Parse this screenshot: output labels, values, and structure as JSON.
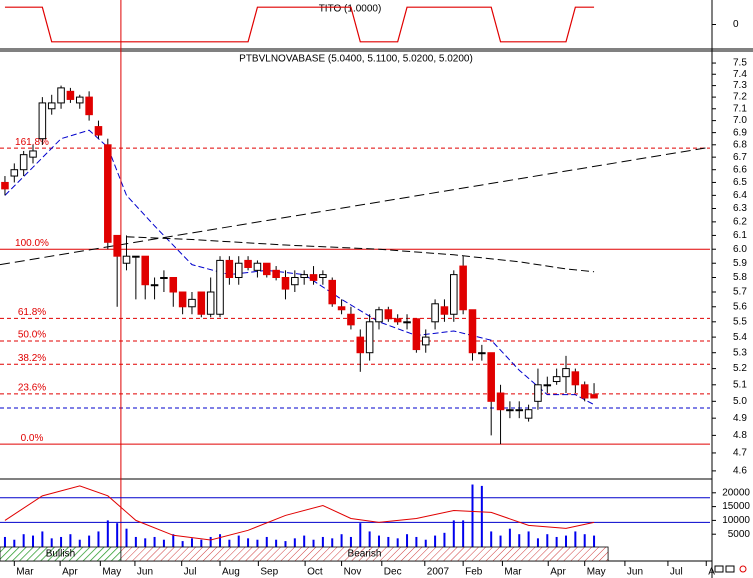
{
  "chart_data": {
    "type": "candlestick",
    "title": "PTBVLNOVABASE (5.0400, 5.1100, 5.0200, 5.0200)",
    "log_scale": true,
    "ylim": [
      4.55,
      7.6
    ],
    "yticks": [
      4.6,
      4.7,
      4.8,
      4.9,
      {
        "value": 5,
        "label": "5.0"
      },
      5.1,
      5.2,
      5.3,
      5.4,
      5.5,
      5.6,
      5.7,
      5.8,
      5.9,
      {
        "value": 6,
        "label": "6.0"
      },
      6.1,
      6.2,
      6.3,
      6.4,
      6.5,
      6.6,
      6.7,
      6.8,
      6.9,
      {
        "value": 7,
        "label": "7.0"
      },
      7.1,
      7.2,
      7.3,
      7.4,
      7.5
    ],
    "xlim": [
      -0.53,
      75.4
    ],
    "xticks": [
      {
        "value": 1.0,
        "label": "Mar"
      },
      {
        "value": 5.9,
        "label": "Apr"
      },
      {
        "value": 10.2,
        "label": "May"
      },
      {
        "value": 13.9,
        "label": "Jun"
      },
      {
        "value": 18.9,
        "label": "Jul"
      },
      {
        "value": 23.0,
        "label": "Aug"
      },
      {
        "value": 27.1,
        "label": "Sep"
      },
      {
        "value": 32.1,
        "label": "Oct"
      },
      {
        "value": 36.0,
        "label": "Nov"
      },
      {
        "value": 40.3,
        "label": "Dec"
      },
      {
        "value": 44.9,
        "label": "2007"
      },
      {
        "value": 49.0,
        "label": "Feb"
      },
      {
        "value": 53.2,
        "label": "Mar"
      },
      {
        "value": 58.1,
        "label": "Apr"
      },
      {
        "value": 62.0,
        "label": "May"
      },
      {
        "value": 66.3,
        "label": "Jun"
      },
      {
        "value": 70.9,
        "label": "Jul"
      },
      {
        "value": 75.0,
        "label": "A"
      }
    ],
    "up_color": "#ffffff",
    "down_color": "#e00000",
    "open": [
      6.5,
      6.55,
      6.6,
      6.7,
      6.85,
      7.1,
      7.15,
      7.25,
      7.15,
      7.2,
      6.95,
      6.8,
      6.1,
      5.9,
      5.95,
      5.95,
      5.75,
      5.8,
      5.8,
      5.7,
      5.6,
      5.7,
      5.55,
      5.55,
      5.92,
      5.8,
      5.92,
      5.85,
      5.9,
      5.85,
      5.8,
      5.75,
      5.8,
      5.82,
      5.8,
      5.78,
      5.6,
      5.55,
      5.4,
      5.3,
      5.5,
      5.58,
      5.52,
      5.5,
      5.52,
      5.35,
      5.5,
      5.6,
      5.55,
      5.88,
      5.58,
      5.3,
      5.3,
      5.05,
      4.95,
      4.95,
      4.9,
      5.0,
      5.1,
      5.12,
      5.15,
      5.18,
      5.1,
      5.04
    ],
    "high": [
      6.55,
      6.65,
      6.75,
      6.8,
      7.2,
      7.22,
      7.3,
      7.28,
      7.22,
      7.25,
      7.0,
      6.85,
      6.1,
      6.1,
      5.95,
      5.95,
      5.8,
      5.85,
      5.8,
      5.7,
      5.7,
      5.7,
      5.8,
      5.95,
      5.95,
      5.95,
      5.95,
      5.92,
      5.9,
      5.88,
      5.85,
      5.85,
      5.85,
      5.88,
      5.85,
      5.8,
      5.65,
      5.6,
      5.45,
      5.55,
      5.6,
      5.6,
      5.55,
      5.55,
      5.52,
      5.45,
      5.65,
      5.65,
      5.85,
      5.95,
      5.58,
      5.35,
      5.3,
      5.1,
      5.0,
      5.0,
      4.98,
      5.2,
      5.15,
      5.2,
      5.28,
      5.2,
      5.12,
      5.11
    ],
    "low": [
      6.4,
      6.5,
      6.55,
      6.65,
      6.8,
      7.05,
      7.1,
      7.15,
      7.1,
      7.0,
      6.85,
      6.0,
      5.6,
      5.85,
      5.65,
      5.65,
      5.65,
      5.7,
      5.6,
      5.55,
      5.55,
      5.53,
      5.53,
      5.53,
      5.75,
      5.75,
      5.85,
      5.8,
      5.8,
      5.78,
      5.65,
      5.7,
      5.75,
      5.75,
      5.75,
      5.6,
      5.55,
      5.45,
      5.18,
      5.25,
      5.45,
      5.5,
      5.48,
      5.45,
      5.3,
      5.3,
      5.45,
      5.5,
      5.5,
      5.55,
      5.25,
      5.25,
      4.8,
      4.75,
      4.9,
      4.9,
      4.88,
      4.95,
      5.05,
      5.1,
      5.05,
      5.05,
      5.0,
      5.02
    ],
    "close": [
      6.45,
      6.6,
      6.72,
      6.75,
      7.15,
      7.15,
      7.28,
      7.18,
      7.2,
      7.05,
      6.88,
      6.05,
      5.95,
      5.95,
      5.95,
      5.75,
      5.75,
      5.8,
      5.7,
      5.6,
      5.65,
      5.55,
      5.7,
      5.92,
      5.8,
      5.9,
      5.87,
      5.9,
      5.82,
      5.8,
      5.72,
      5.8,
      5.82,
      5.78,
      5.82,
      5.62,
      5.58,
      5.48,
      5.3,
      5.5,
      5.58,
      5.52,
      5.5,
      5.5,
      5.32,
      5.4,
      5.62,
      5.55,
      5.82,
      5.58,
      5.3,
      5.3,
      5.0,
      4.95,
      4.95,
      4.95,
      4.95,
      5.1,
      5.1,
      5.15,
      5.2,
      5.1,
      5.02,
      5.02
    ],
    "overlays": [
      {
        "color": "#0000cc",
        "dash": "6,3",
        "x": [
          0,
          3,
          6,
          9,
          11,
          13,
          16,
          20,
          24,
          28,
          32,
          36,
          40,
          44,
          48,
          52,
          55,
          58,
          61,
          63
        ],
        "values": [
          6.4,
          6.62,
          6.85,
          6.92,
          6.78,
          6.4,
          6.17,
          5.89,
          5.82,
          5.85,
          5.82,
          5.65,
          5.5,
          5.41,
          5.44,
          5.38,
          5.19,
          5.04,
          5.04,
          4.98
        ]
      },
      {
        "color": "#000000",
        "dash": "8,4",
        "x": [
          13,
          20,
          30,
          40,
          48,
          55,
          60,
          63
        ],
        "values": [
          6.09,
          6.07,
          6.03,
          6.0,
          5.96,
          5.91,
          5.86,
          5.84
        ]
      },
      {
        "color": "#000000",
        "dash": "10,5",
        "x": [
          -0.53,
          75.4
        ],
        "values": [
          5.89,
          6.78
        ]
      }
    ],
    "levels": [
      {
        "label": "161.8%",
        "value": 6.7725,
        "color": "#e00000",
        "dash": "4,3"
      },
      {
        "label": "100.0%",
        "value": 6.0,
        "color": "#e00000",
        "dash": "none"
      },
      {
        "label": "61.8%",
        "value": 5.5225,
        "color": "#e00000",
        "dash": "4,3"
      },
      {
        "label": "50.0%",
        "value": 5.375,
        "color": "#e00000",
        "dash": "4,3"
      },
      {
        "label": "38.2%",
        "value": 5.2275,
        "color": "#e00000",
        "dash": "4,3"
      },
      {
        "label": "23.6%",
        "value": 5.045,
        "color": "#e00000",
        "dash": "4,3"
      },
      {
        "label": "0.0%",
        "value": 4.75,
        "color": "#e00000",
        "dash": "none"
      },
      {
        "value": 4.96,
        "color": "#0000cc",
        "dash": "4,3"
      }
    ],
    "marker_x": 12.4,
    "marker_color": "#e00000",
    "indicator": {
      "title": "TITO (1.0000)",
      "color": "#e00000",
      "ylim": [
        -1.3,
        1.3
      ],
      "yticks": [
        0
      ],
      "values": [
        1,
        1,
        1,
        1,
        1,
        -1,
        -1,
        -1,
        -1,
        -1,
        -1,
        -1,
        -1,
        -1,
        -1,
        -1,
        -1,
        -1,
        -1,
        -1,
        -1,
        -1,
        -1,
        -1,
        -1,
        -1,
        -1,
        1,
        1,
        1,
        1,
        1,
        1,
        1,
        1,
        1,
        1,
        1,
        -1,
        -1,
        -1,
        -1,
        -1,
        1,
        1,
        1,
        1,
        1,
        1,
        1,
        1,
        1,
        1,
        -1,
        -1,
        -1,
        -1,
        -1,
        -1,
        -1,
        -1,
        1,
        1,
        1
      ]
    },
    "volume": {
      "color": "#0000ee",
      "ylim": [
        0,
        25000
      ],
      "yticks": [
        5000,
        10000,
        15000,
        20000
      ],
      "values": [
        4000,
        3000,
        5000,
        4500,
        6000,
        3500,
        4000,
        5000,
        3000,
        4500,
        6000,
        10000,
        9000,
        7000,
        4000,
        3500,
        4000,
        3000,
        5000,
        2500,
        3500,
        3000,
        4000,
        5000,
        3000,
        4500,
        3500,
        3000,
        4000,
        3000,
        2500,
        3500,
        4500,
        3000,
        4000,
        3500,
        5000,
        4000,
        9000,
        6000,
        4500,
        4000,
        3500,
        5000,
        4000,
        3000,
        4500,
        5500,
        10000,
        10000,
        23000,
        22500,
        6000,
        4500,
        7000,
        5000,
        6000,
        3500,
        5000,
        4000,
        4500,
        6000,
        5000,
        4500
      ],
      "levels": [
        {
          "value": 18200,
          "color": "#0000cc"
        },
        {
          "value": 9300,
          "color": "#0000cc"
        }
      ],
      "oscillator": {
        "color": "#e00000",
        "x": [
          0,
          4,
          8,
          11,
          14,
          18,
          22,
          26,
          30,
          34,
          37,
          40,
          44,
          48,
          52,
          56,
          60,
          63
        ],
        "values": [
          10000,
          18900,
          22500,
          18900,
          10000,
          4600,
          2900,
          6400,
          11800,
          15400,
          10700,
          9300,
          10700,
          13600,
          12900,
          8200,
          7100,
          9300
        ]
      }
    },
    "regimes": [
      {
        "label": "Bullish",
        "start": -0.53,
        "end": 12.4,
        "pattern": "hatch-green"
      },
      {
        "label": "Bearish",
        "start": 12.4,
        "end": 64.5,
        "pattern": "hatch-red"
      }
    ]
  }
}
